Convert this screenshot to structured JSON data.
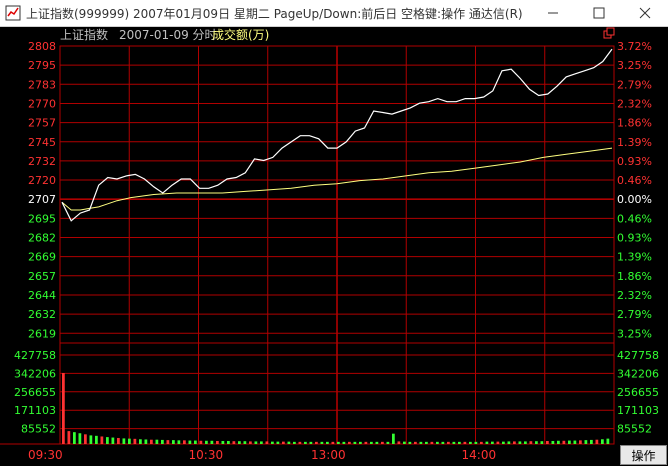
{
  "window": {
    "title": "上证指数(999999) 2007年01月09日 星期二 PageUp/Down:前后日 空格键:操作 通达信(R)"
  },
  "header": {
    "index_name": "上证指数",
    "date": "2007-01-09 分时",
    "volume_label": "成交额(万)"
  },
  "colors": {
    "grid": "#b00000",
    "price_up": "#ff3232",
    "price_down": "#32ff32",
    "price_line": "#ffffff",
    "avg_line": "#ffff80",
    "base_label": "#ffffff"
  },
  "chart_data": {
    "type": "line",
    "title": "上证指数 2007-01-09 分时",
    "base_price": "2707",
    "price_axis_labels": [
      "2808",
      "2795",
      "2783",
      "2770",
      "2757",
      "2745",
      "2732",
      "2720",
      "2707",
      "2695",
      "2682",
      "2669",
      "2657",
      "2644",
      "2632",
      "2619"
    ],
    "pct_axis_labels": [
      "3.72%",
      "3.25%",
      "2.79%",
      "2.32%",
      "1.86%",
      "1.39%",
      "0.93%",
      "0.46%",
      "0.00%",
      "0.46%",
      "0.93%",
      "1.39%",
      "1.86%",
      "2.32%",
      "2.79%",
      "3.25%"
    ],
    "volume_axis_labels": [
      "427758",
      "342206",
      "256655",
      "171103",
      "85552"
    ],
    "time_labels": [
      "09:30",
      "10:30",
      "13:00",
      "14:00"
    ],
    "price_range": [
      2616,
      2808
    ],
    "volume_range": [
      0,
      427758
    ],
    "price_series": {
      "name": "",
      "t": [
        0,
        4,
        8,
        12,
        16,
        20,
        24,
        28,
        32,
        36,
        40,
        44,
        48,
        52,
        56,
        60,
        64,
        68,
        72,
        76,
        80,
        84,
        88,
        92,
        96,
        100,
        104,
        108,
        112,
        116,
        120,
        124,
        128,
        132,
        136,
        140,
        144,
        148,
        152,
        156,
        160,
        164,
        168,
        172,
        176,
        180,
        184,
        188,
        192,
        196,
        200,
        204,
        208,
        212,
        216,
        220,
        224,
        228,
        232,
        236,
        240
      ],
      "values": [
        2707,
        2695,
        2700,
        2702,
        2718,
        2723,
        2722,
        2724,
        2725,
        2722,
        2717,
        2713,
        2718,
        2722,
        2722,
        2716,
        2716,
        2718,
        2722,
        2723,
        2726,
        2735,
        2734,
        2736,
        2742,
        2746,
        2750,
        2750,
        2748,
        2742,
        2742,
        2746,
        2753,
        2755,
        2766,
        2765,
        2764,
        2766,
        2768,
        2771,
        2772,
        2774,
        2772,
        2772,
        2774,
        2774,
        2775,
        2779,
        2792,
        2793,
        2787,
        2780,
        2776,
        2777,
        2782,
        2788,
        2790,
        2792,
        2794,
        2798,
        2806
      ]
    },
    "avg_series": {
      "name": "",
      "t": [
        0,
        4,
        8,
        12,
        16,
        20,
        24,
        30,
        40,
        50,
        60,
        70,
        80,
        90,
        100,
        110,
        120,
        130,
        140,
        150,
        160,
        170,
        180,
        190,
        200,
        210,
        220,
        230,
        240
      ],
      "values": [
        2707,
        2702,
        2702,
        2703,
        2704,
        2706,
        2708,
        2710,
        2712,
        2713,
        2713,
        2713,
        2714,
        2715,
        2716,
        2718,
        2719,
        2721,
        2722,
        2724,
        2726,
        2727,
        2729,
        2731,
        2733,
        2736,
        2738,
        2740,
        2742
      ]
    },
    "volume_series": {
      "name": "",
      "values": [
        330000,
        60000,
        55000,
        50000,
        45000,
        40000,
        38000,
        35000,
        32000,
        30000,
        28000,
        26000,
        25000,
        24000,
        22000,
        21000,
        20000,
        20000,
        19000,
        18000,
        18000,
        17000,
        17000,
        16000,
        16000,
        15000,
        15000,
        15000,
        14000,
        14000,
        14000,
        13000,
        13000,
        13000,
        12000,
        12000,
        12000,
        12000,
        11000,
        11000,
        11000,
        11000,
        10000,
        10000,
        10000,
        10000,
        10000,
        10000,
        10000,
        10000,
        10000,
        10000,
        10000,
        10000,
        10000,
        10000,
        10000,
        10000,
        10000,
        10000,
        48000,
        12000,
        11000,
        10000,
        10000,
        10000,
        10000,
        10000,
        10000,
        10000,
        10000,
        10000,
        10000,
        10000,
        10000,
        10000,
        10000,
        11000,
        11000,
        11000,
        11000,
        12000,
        12000,
        12000,
        12000,
        13000,
        13000,
        13000,
        14000,
        14000,
        15000,
        15000,
        16000,
        16000,
        17000,
        18000,
        19000,
        20000,
        22000,
        25000
      ]
    }
  }
}
